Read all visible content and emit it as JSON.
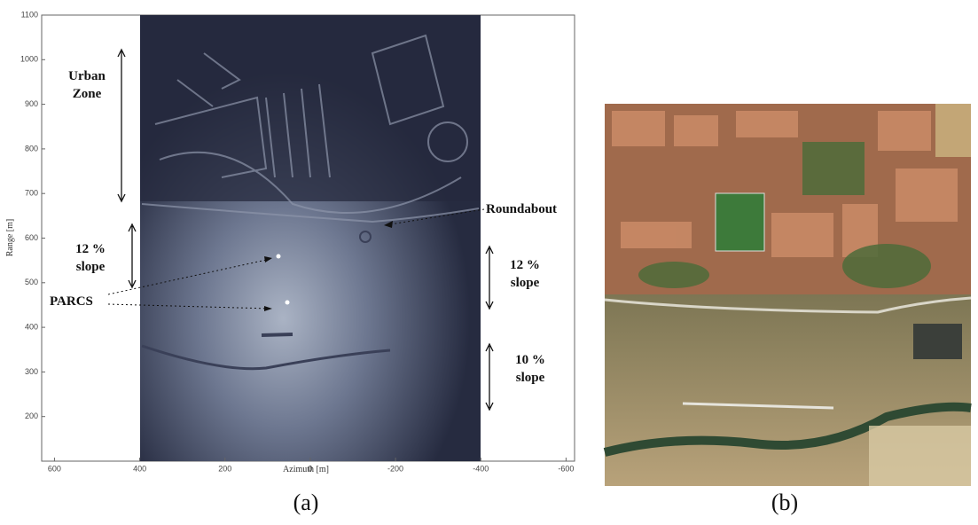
{
  "chart_data": {
    "type": "image",
    "x_label": "Azimuth [m]",
    "y_label": "Range [m]",
    "xlim": [
      630,
      -620
    ],
    "ylim": [
      100,
      1100
    ],
    "xticks": [
      600,
      400,
      200,
      0,
      -200,
      -400,
      -600
    ],
    "yticks": [
      200,
      300,
      400,
      500,
      600,
      700,
      800,
      900,
      1000,
      1100
    ],
    "annotations": [
      "Urban Zone",
      "12 % slope",
      "PARCS",
      "Roundabout",
      "12 % slope",
      "10 % slope"
    ],
    "panel_labels": [
      "(a)",
      "(b)"
    ]
  }
}
